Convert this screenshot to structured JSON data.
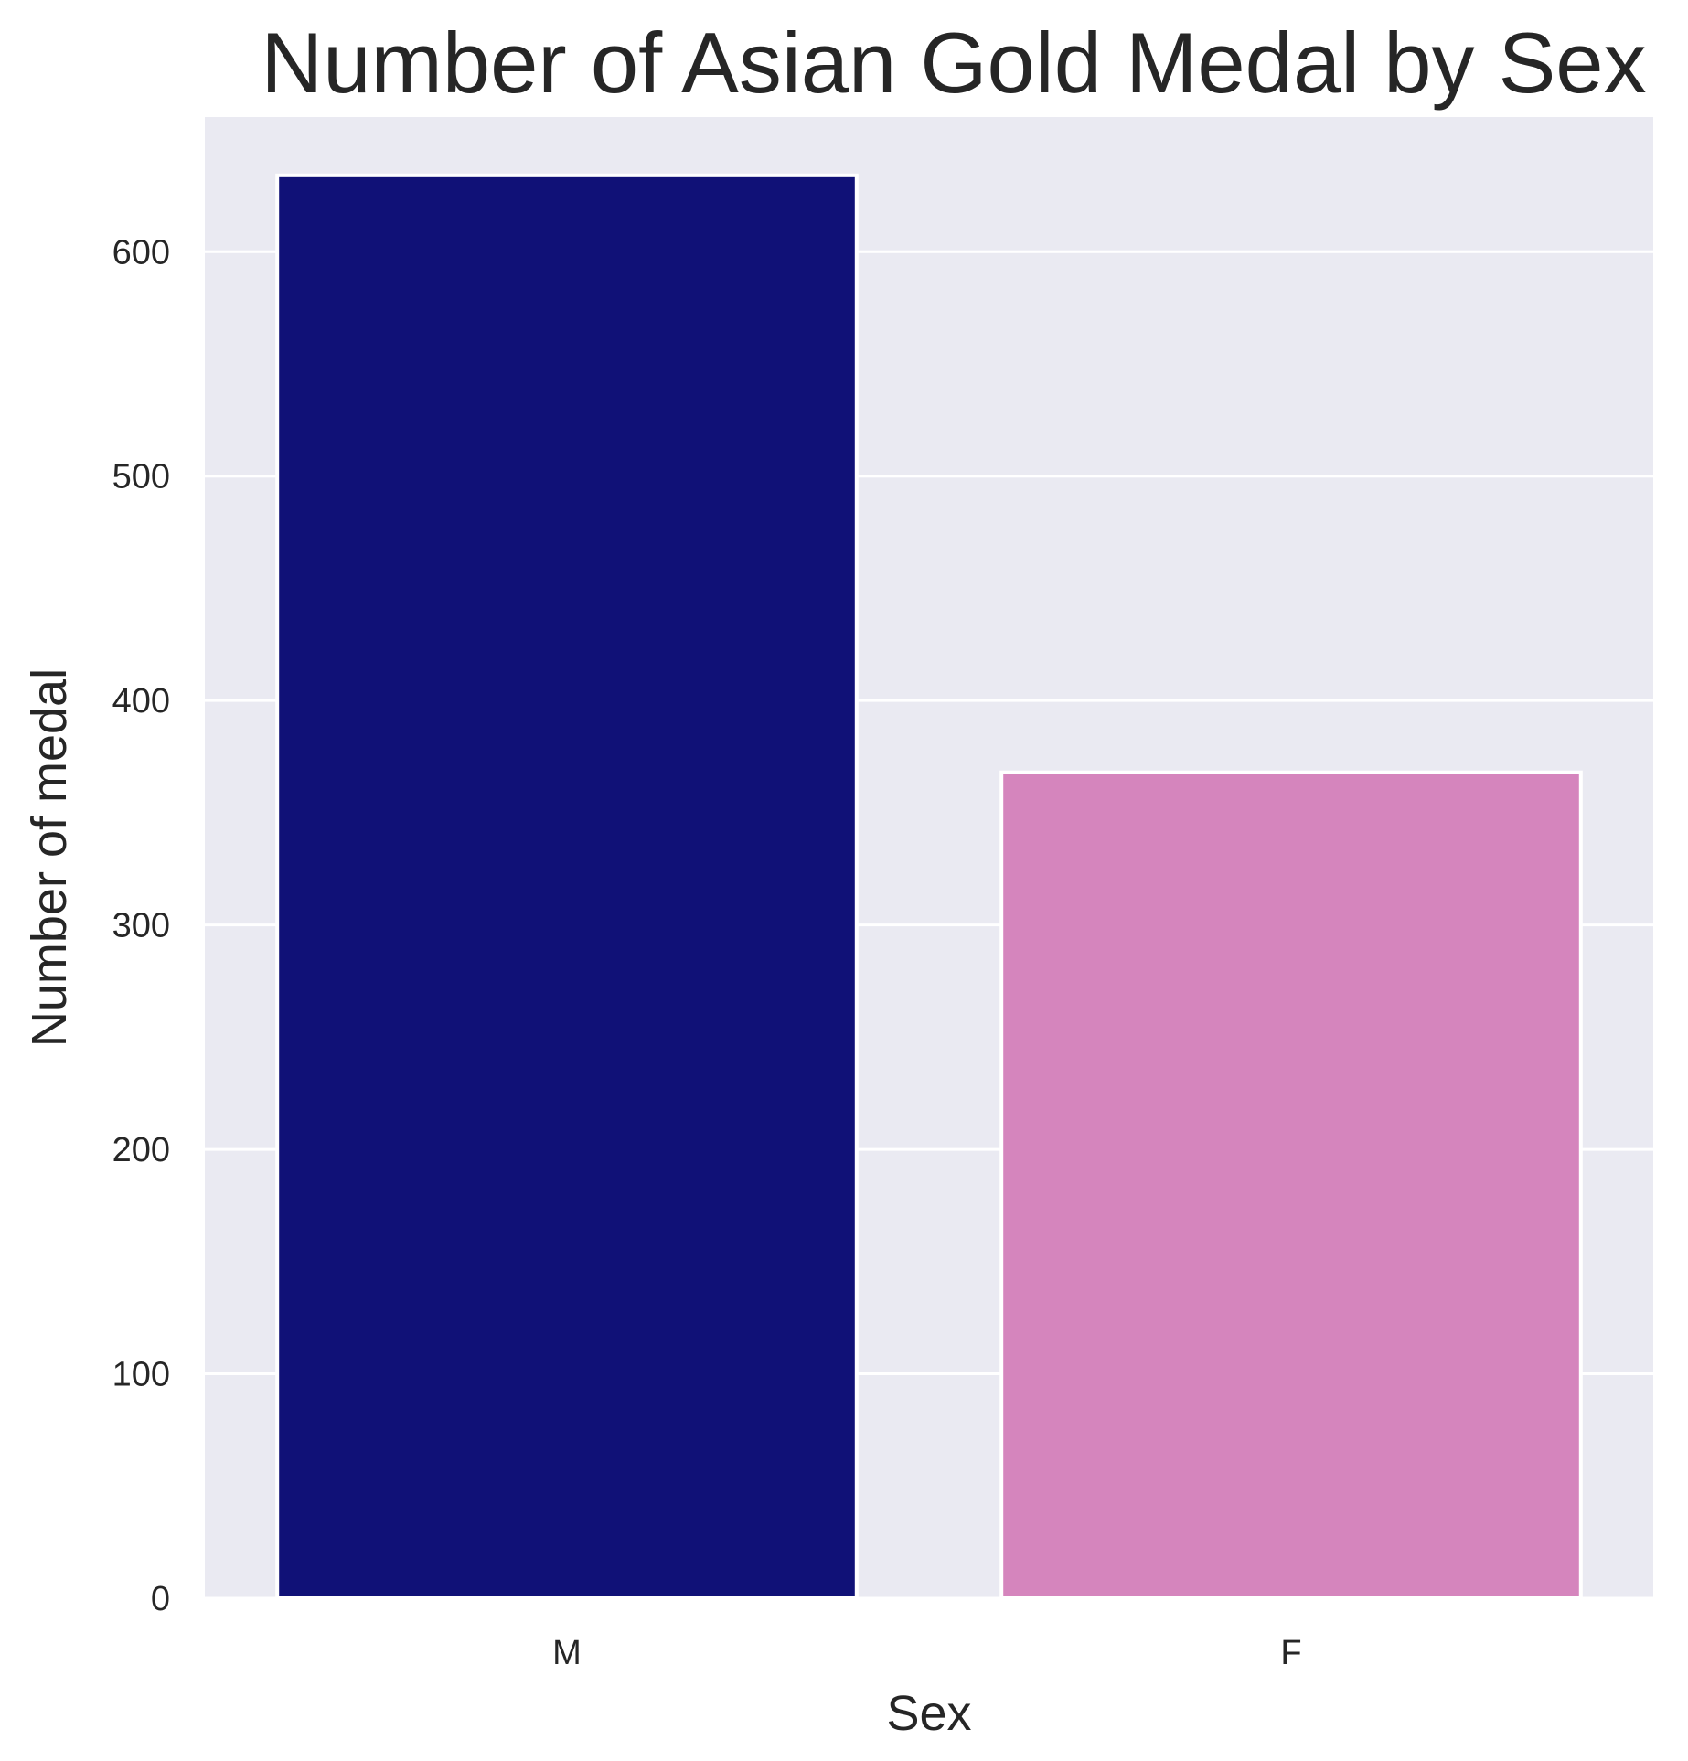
{
  "chart_data": {
    "type": "bar",
    "title": "Number of Asian Gold Medal by Sex",
    "xlabel": "Sex",
    "ylabel": "Number of medal",
    "categories": [
      "M",
      "F"
    ],
    "values": [
      634,
      368
    ],
    "colors": [
      "#101177",
      "#d585bd"
    ],
    "ylim": [
      0,
      660
    ],
    "yticks": [
      0,
      100,
      200,
      300,
      400,
      500,
      600
    ],
    "grid": true,
    "background_color": "#eaeaf2",
    "legend": "none"
  }
}
